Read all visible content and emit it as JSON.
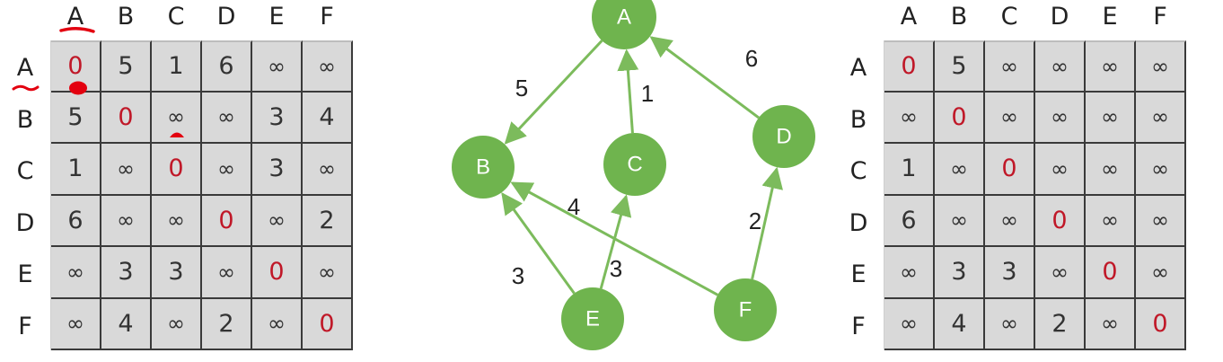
{
  "colors": {
    "node_fill": "#6fb44e",
    "edge": "#7cbb5c",
    "zero": "#c01828",
    "annotation": "#e3000f",
    "cell_bg": "#d9d9d9"
  },
  "left_matrix": {
    "col_headers": [
      "A",
      "B",
      "C",
      "D",
      "E",
      "F"
    ],
    "row_headers": [
      "A",
      "B",
      "C",
      "D",
      "E",
      "F"
    ],
    "rows": [
      [
        "0",
        "5",
        "1",
        "6",
        "∞",
        "∞"
      ],
      [
        "5",
        "0",
        "∞",
        "∞",
        "3",
        "4"
      ],
      [
        "1",
        "∞",
        "0",
        "∞",
        "3",
        "∞"
      ],
      [
        "6",
        "∞",
        "∞",
        "0",
        "∞",
        "2"
      ],
      [
        "∞",
        "3",
        "3",
        "∞",
        "0",
        "∞"
      ],
      [
        "∞",
        "4",
        "∞",
        "2",
        "∞",
        "0"
      ]
    ]
  },
  "right_matrix": {
    "col_headers": [
      "A",
      "B",
      "C",
      "D",
      "E",
      "F"
    ],
    "row_headers": [
      "A",
      "B",
      "C",
      "D",
      "E",
      "F"
    ],
    "rows": [
      [
        "0",
        "5",
        "∞",
        "∞",
        "∞",
        "∞"
      ],
      [
        "∞",
        "0",
        "∞",
        "∞",
        "∞",
        "∞"
      ],
      [
        "1",
        "∞",
        "0",
        "∞",
        "∞",
        "∞"
      ],
      [
        "6",
        "∞",
        "∞",
        "0",
        "∞",
        "∞"
      ],
      [
        "∞",
        "3",
        "3",
        "∞",
        "0",
        "∞"
      ],
      [
        "∞",
        "4",
        "∞",
        "2",
        "∞",
        "0"
      ]
    ]
  },
  "graph": {
    "nodes": [
      {
        "id": "A",
        "label": "A"
      },
      {
        "id": "B",
        "label": "B"
      },
      {
        "id": "C",
        "label": "C"
      },
      {
        "id": "D",
        "label": "D"
      },
      {
        "id": "E",
        "label": "E"
      },
      {
        "id": "F",
        "label": "F"
      }
    ],
    "edges": [
      {
        "from": "A",
        "to": "B",
        "weight": "5"
      },
      {
        "from": "C",
        "to": "A",
        "weight": "1"
      },
      {
        "from": "D",
        "to": "A",
        "weight": "6"
      },
      {
        "from": "F",
        "to": "B",
        "weight": "4"
      },
      {
        "from": "E",
        "to": "B",
        "weight": "3"
      },
      {
        "from": "E",
        "to": "C",
        "weight": "3"
      },
      {
        "from": "F",
        "to": "D",
        "weight": "2"
      }
    ]
  }
}
